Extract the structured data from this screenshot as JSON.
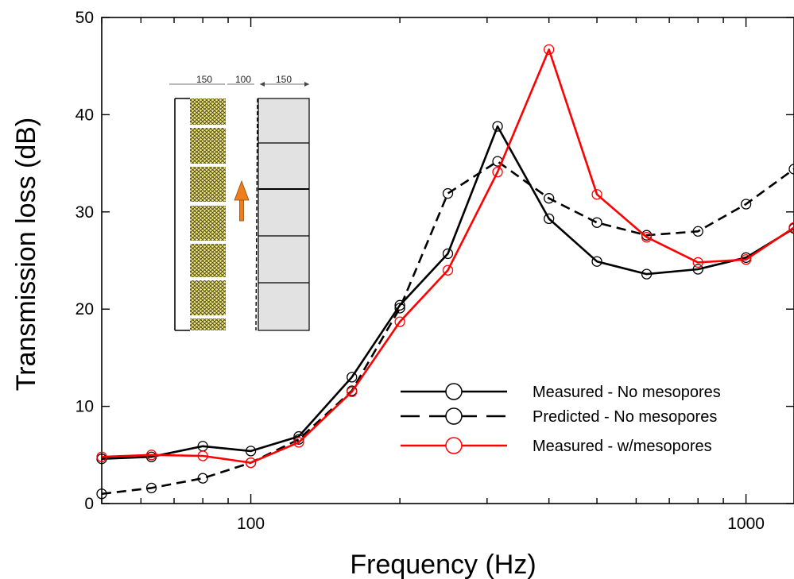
{
  "chart_data": {
    "type": "line",
    "xlabel": "Frequency (Hz)",
    "ylabel": "Transmission loss (dB)",
    "x_scale": "log",
    "xlim": [
      50,
      1250
    ],
    "ylim": [
      0,
      50
    ],
    "x_ticks": [
      100,
      1000
    ],
    "x_tick_labels": [
      "100",
      "1000"
    ],
    "y_ticks": [
      0,
      10,
      20,
      30,
      40,
      50
    ],
    "y_tick_labels": [
      "0",
      "10",
      "20",
      "30",
      "40",
      "50"
    ],
    "grid": false,
    "legend_position": "center-right",
    "x": [
      50,
      63,
      80,
      100,
      125,
      160,
      200,
      250,
      315,
      400,
      500,
      630,
      800,
      1000,
      1250
    ],
    "series": [
      {
        "name": "Measured - No mesopores",
        "color": "#000000",
        "dashed": false,
        "values": [
          4.6,
          4.8,
          5.9,
          5.4,
          6.9,
          13.0,
          20.4,
          25.7,
          38.8,
          29.3,
          24.9,
          23.6,
          24.1,
          25.3,
          28.3
        ]
      },
      {
        "name": "Predicted - No mesopores",
        "color": "#000000",
        "dashed": true,
        "values": [
          1.0,
          1.6,
          2.6,
          4.2,
          6.6,
          11.6,
          20.1,
          31.9,
          35.2,
          31.4,
          28.9,
          27.6,
          28.0,
          30.8,
          34.4
        ]
      },
      {
        "name": "Measured - w/mesopores",
        "color": "#ff0000",
        "dashed": false,
        "values": [
          4.8,
          5.0,
          4.9,
          4.2,
          6.3,
          11.5,
          18.7,
          24.0,
          34.1,
          46.7,
          31.8,
          27.4,
          24.8,
          25.1,
          28.4
        ]
      }
    ],
    "inset": {
      "dimension_labels": [
        "150",
        "100",
        "150"
      ]
    }
  }
}
